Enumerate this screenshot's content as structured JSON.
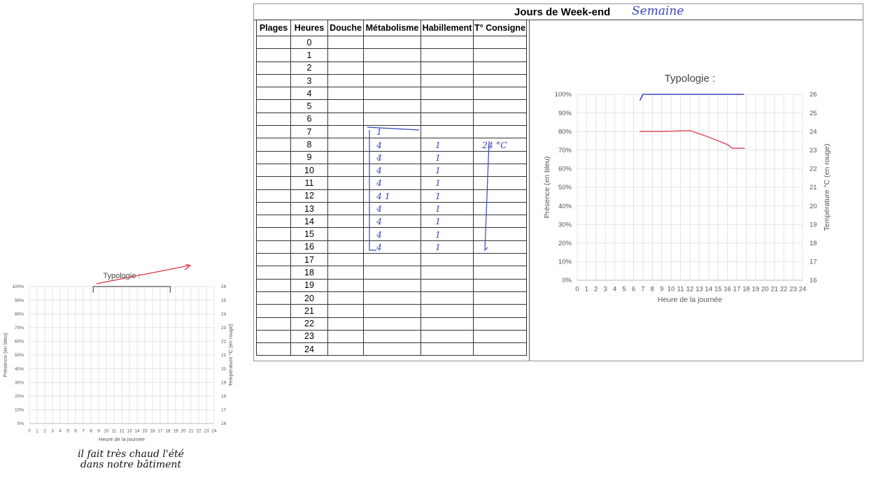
{
  "sheet": {
    "title": "Jours de Week-end",
    "handwritten_title_note": "Semaine",
    "headers": [
      "Plages",
      "Heures",
      "Douche",
      "Métabolisme",
      "Habillement",
      "T° Consigne"
    ],
    "hours": [
      "0",
      "1",
      "2",
      "3",
      "4",
      "5",
      "6",
      "7",
      "8",
      "9",
      "10",
      "11",
      "12",
      "13",
      "14",
      "15",
      "16",
      "17",
      "18",
      "19",
      "20",
      "21",
      "22",
      "23",
      "24"
    ],
    "handwritten_metabolisme": {
      "7": "1",
      "8": "4",
      "9": "4",
      "10": "4",
      "11": "4",
      "12": "4 1",
      "13": "4",
      "14": "4",
      "15": "4",
      "16": "4"
    },
    "handwritten_habillement": {
      "8": "1",
      "9": "1",
      "10": "1",
      "11": "1",
      "12": "1",
      "13": "1",
      "14": "1",
      "15": "1",
      "16": "1"
    },
    "handwritten_consigne": {
      "8": "24 °C"
    }
  },
  "chart_data": [
    {
      "type": "line",
      "title": "Typologie :",
      "xlabel": "Heure de la journée",
      "ylabel": "Présence (en bleu)",
      "y2label": "Température °C  (en rouge)",
      "x_ticks": [
        0,
        1,
        2,
        3,
        4,
        5,
        6,
        7,
        8,
        9,
        10,
        11,
        12,
        13,
        14,
        15,
        16,
        17,
        18,
        19,
        20,
        21,
        22,
        23,
        24
      ],
      "y_ticks": [
        "0%",
        "10%",
        "20%",
        "30%",
        "40%",
        "50%",
        "60%",
        "70%",
        "80%",
        "90%",
        "100%"
      ],
      "y2_ticks": [
        16,
        17,
        18,
        19,
        20,
        21,
        22,
        23,
        24,
        25,
        26
      ],
      "ylim": [
        0,
        100
      ],
      "y2lim": [
        16,
        26
      ],
      "grid": true,
      "series": [
        {
          "name": "Présence",
          "color": "#3b49c4",
          "x": [
            6.7,
            7,
            12,
            17.7
          ],
          "y": [
            97,
            100,
            100,
            100
          ]
        },
        {
          "name": "Température",
          "color": "#e05a6a",
          "axis": "right",
          "x": [
            6.7,
            9,
            12,
            14,
            16,
            16.5,
            17.8
          ],
          "y": [
            24,
            24,
            24.05,
            23.7,
            23.3,
            23.1,
            23.1
          ]
        }
      ]
    },
    {
      "type": "line",
      "title": "Typologie :",
      "xlabel": "Heure de la journée",
      "ylabel": "Présence (en bleu)",
      "y2label": "Température °C  (en rouge)",
      "x_ticks": [
        0,
        1,
        2,
        3,
        4,
        5,
        6,
        7,
        8,
        9,
        10,
        11,
        12,
        13,
        14,
        15,
        16,
        17,
        18,
        19,
        20,
        21,
        22,
        23,
        24
      ],
      "y_ticks": [
        "0%",
        "10%",
        "20%",
        "30%",
        "40%",
        "50%",
        "60%",
        "70%",
        "80%",
        "90%",
        "100%"
      ],
      "y2_ticks": [
        16,
        17,
        18,
        19,
        20,
        21,
        22,
        23,
        24,
        25,
        26
      ],
      "ylim": [
        0,
        100
      ],
      "y2lim": [
        16,
        26
      ],
      "grid": true,
      "series": [
        {
          "name": "Présence",
          "color": "#555555",
          "x": [
            8.3,
            8.3,
            18.3,
            18.3
          ],
          "y": [
            96,
            100,
            100,
            96
          ]
        }
      ]
    }
  ],
  "bottom_caption": [
    "il fait très chaud l'été",
    "dans notre bâtiment"
  ]
}
